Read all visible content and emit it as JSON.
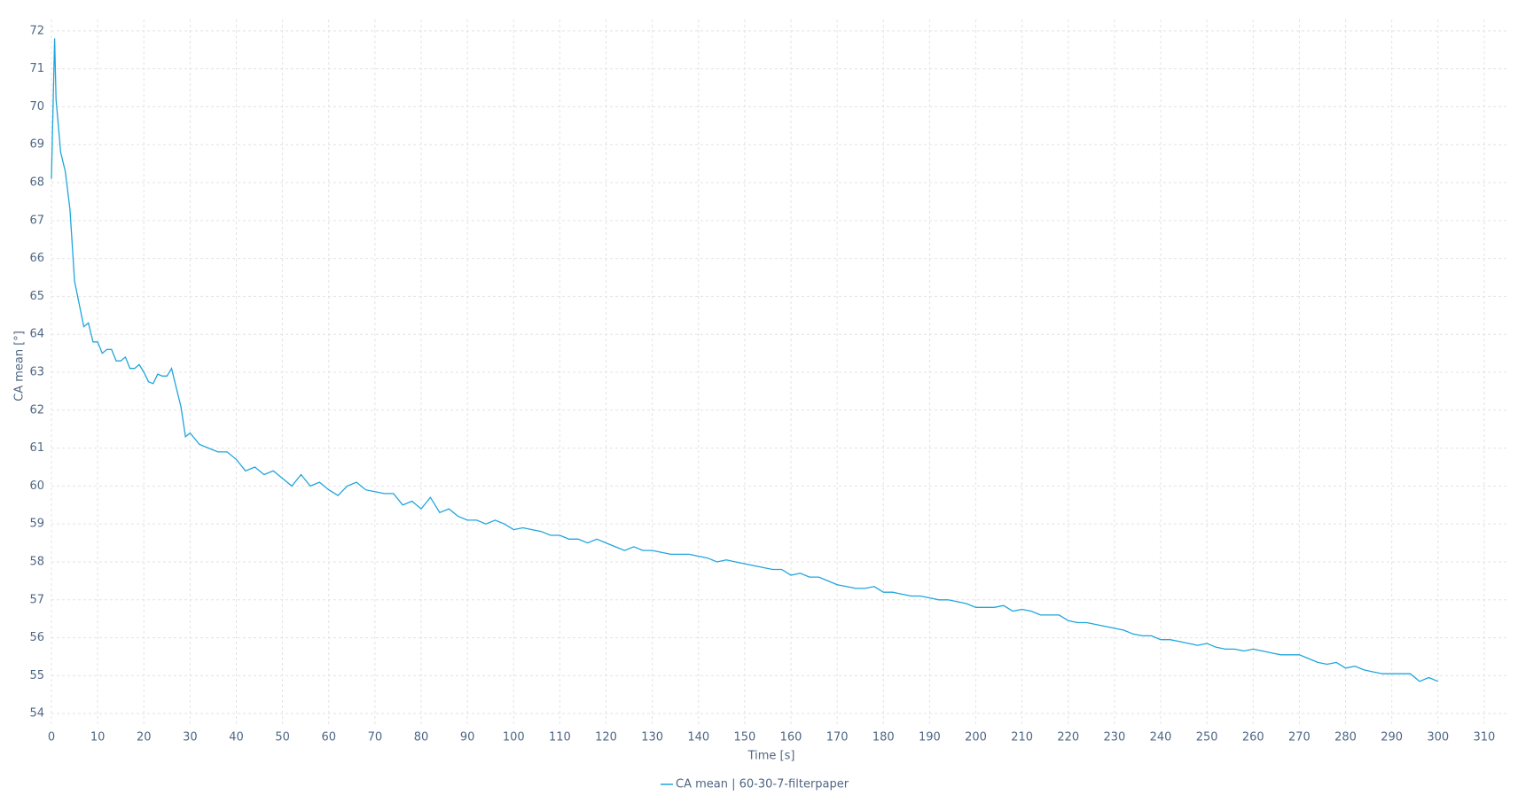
{
  "chart_data": {
    "type": "line",
    "x_label": "Time [s]",
    "y_label": "CA mean [°]",
    "x": [
      0,
      0.7,
      1,
      2,
      3,
      4,
      5,
      6,
      7,
      8,
      9,
      10,
      11,
      12,
      13,
      14,
      15,
      16,
      17,
      18,
      19,
      20,
      21,
      22,
      23,
      24,
      25,
      26,
      27,
      28,
      29,
      30,
      32,
      34,
      36,
      38,
      40,
      42,
      44,
      46,
      48,
      50,
      52,
      54,
      56,
      58,
      60,
      62,
      64,
      66,
      68,
      70,
      72,
      74,
      76,
      78,
      80,
      82,
      84,
      86,
      88,
      90,
      92,
      94,
      96,
      98,
      100,
      102,
      104,
      106,
      108,
      110,
      112,
      114,
      116,
      118,
      120,
      122,
      124,
      126,
      128,
      130,
      132,
      134,
      136,
      138,
      140,
      142,
      144,
      146,
      148,
      150,
      152,
      154,
      156,
      158,
      160,
      162,
      164,
      166,
      168,
      170,
      172,
      174,
      176,
      178,
      180,
      182,
      184,
      186,
      188,
      190,
      192,
      194,
      196,
      198,
      200,
      202,
      204,
      206,
      208,
      210,
      212,
      214,
      216,
      218,
      220,
      222,
      224,
      226,
      228,
      230,
      232,
      234,
      236,
      238,
      240,
      242,
      244,
      246,
      248,
      250,
      252,
      254,
      256,
      258,
      260,
      262,
      264,
      266,
      268,
      270,
      272,
      274,
      276,
      278,
      280,
      282,
      284,
      286,
      288,
      290,
      292,
      294,
      296,
      298,
      300
    ],
    "series": [
      {
        "name": "CA mean | 60-30-7-filterpaper",
        "color": "#1fa5dc",
        "values": [
          68.1,
          71.8,
          70.2,
          68.8,
          68.3,
          67.3,
          65.4,
          64.8,
          64.2,
          64.3,
          63.8,
          63.8,
          63.5,
          63.6,
          63.6,
          63.3,
          63.3,
          63.4,
          63.1,
          63.1,
          63.2,
          63.0,
          62.75,
          62.7,
          62.95,
          62.9,
          62.9,
          63.1,
          62.6,
          62.1,
          61.3,
          61.4,
          61.1,
          61.0,
          60.9,
          60.9,
          60.7,
          60.4,
          60.5,
          60.3,
          60.4,
          60.2,
          60.0,
          60.3,
          60.0,
          60.1,
          59.9,
          59.75,
          60.0,
          60.1,
          59.9,
          59.85,
          59.8,
          59.8,
          59.5,
          59.6,
          59.4,
          59.7,
          59.3,
          59.4,
          59.2,
          59.1,
          59.1,
          59.0,
          59.1,
          59.0,
          58.85,
          58.9,
          58.85,
          58.8,
          58.7,
          58.7,
          58.6,
          58.6,
          58.5,
          58.6,
          58.5,
          58.4,
          58.3,
          58.4,
          58.3,
          58.3,
          58.25,
          58.2,
          58.2,
          58.2,
          58.15,
          58.1,
          58.0,
          58.05,
          58.0,
          57.95,
          57.9,
          57.85,
          57.8,
          57.8,
          57.65,
          57.7,
          57.6,
          57.6,
          57.5,
          57.4,
          57.35,
          57.3,
          57.3,
          57.35,
          57.2,
          57.2,
          57.15,
          57.1,
          57.1,
          57.05,
          57.0,
          57.0,
          56.95,
          56.9,
          56.8,
          56.8,
          56.8,
          56.85,
          56.7,
          56.75,
          56.7,
          56.6,
          56.6,
          56.6,
          56.45,
          56.4,
          56.4,
          56.35,
          56.3,
          56.25,
          56.2,
          56.1,
          56.05,
          56.05,
          55.95,
          55.95,
          55.9,
          55.85,
          55.8,
          55.85,
          55.75,
          55.7,
          55.7,
          55.65,
          55.7,
          55.65,
          55.6,
          55.55,
          55.55,
          55.55,
          55.45,
          55.35,
          55.3,
          55.35,
          55.2,
          55.25,
          55.15,
          55.1,
          55.05,
          55.05,
          55.05,
          55.05,
          54.85,
          54.95,
          54.85
        ]
      }
    ],
    "xlim": [
      0,
      315
    ],
    "ylim": [
      53.7,
      72.3
    ],
    "xticks": [
      0,
      10,
      20,
      30,
      40,
      50,
      60,
      70,
      80,
      90,
      100,
      110,
      120,
      130,
      140,
      150,
      160,
      170,
      180,
      190,
      200,
      210,
      220,
      230,
      240,
      250,
      260,
      270,
      280,
      290,
      300,
      310
    ],
    "yticks": [
      54,
      55,
      56,
      57,
      58,
      59,
      60,
      61,
      62,
      63,
      64,
      65,
      66,
      67,
      68,
      69,
      70,
      71,
      72
    ],
    "grid": true,
    "legend": "bottom"
  }
}
